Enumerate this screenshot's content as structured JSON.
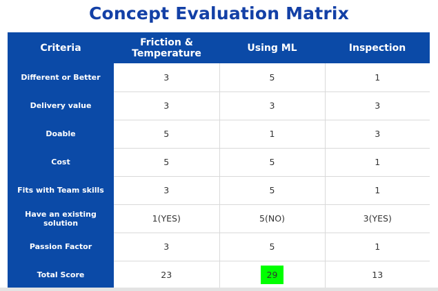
{
  "title": "Concept Evaluation Matrix",
  "headers": [
    "Criteria",
    "Friction & Temperature",
    "Using ML",
    "Inspection"
  ],
  "rows": [
    {
      "criterion": "Different or Better",
      "values": [
        "3",
        "5",
        "1"
      ]
    },
    {
      "criterion": "Delivery value",
      "values": [
        "3",
        "3",
        "3"
      ]
    },
    {
      "criterion": "Doable",
      "values": [
        "5",
        "1",
        "3"
      ]
    },
    {
      "criterion": "Cost",
      "values": [
        "5",
        "5",
        "1"
      ]
    },
    {
      "criterion": "Fits with Team skills",
      "values": [
        "3",
        "5",
        "1"
      ]
    },
    {
      "criterion": "Have an existing solution",
      "values": [
        "1(YES)",
        "5(NO)",
        "3(YES)"
      ]
    },
    {
      "criterion": "Passion Factor",
      "values": [
        "3",
        "5",
        "1"
      ]
    },
    {
      "criterion": "Total Score",
      "values": [
        "23",
        "29",
        "13"
      ]
    }
  ],
  "colors": {
    "header_bg": "#0b4aa7",
    "title": "#1340a6",
    "highlight": "#00ff00"
  },
  "highlight_cell": {
    "row": 7,
    "column": 1
  }
}
